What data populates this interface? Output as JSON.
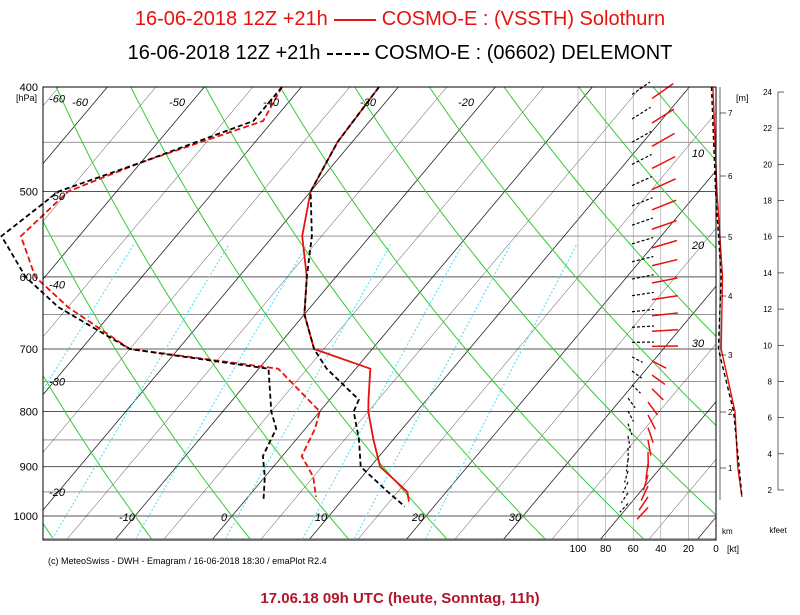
{
  "titles": {
    "line1": "16-06-2018  12Z +21h",
    "line1_model": "COSMO-E : (VSSTH)  Solothurn",
    "line2": "16-06-2018  12Z +21h",
    "line2_model": "COSMO-E : (06602)  DELEMONT"
  },
  "credit": "(c) MeteoSwiss - DWH - Emagram / 16-06-2018  18:30 / emaPlot R2.4",
  "footer": "17.06.18 09h UTC (heute, Sonntag, 11h)",
  "colors": {
    "solothurn": "#e8110e",
    "delemont": "#000000",
    "dry_adiabat": "#33cc33",
    "mixing_ratio": "#66e0f0",
    "isotherm": "#000000",
    "footer": "#b0152a"
  },
  "chart_data": {
    "type": "line",
    "subtype": "emagram",
    "y_axis": {
      "label": "[hPa]",
      "ticks": [
        "400",
        "500",
        "600",
        "700",
        "800",
        "900",
        "1000"
      ],
      "ylim": [
        1000,
        400
      ]
    },
    "x_axis": {
      "ticks": [
        "-10",
        "0",
        "10",
        "20",
        "30"
      ],
      "temperature_labels_left": [
        "-60",
        "-50",
        "-40",
        "-30",
        "-20"
      ],
      "temperature_labels_top": [
        "-60",
        "-50",
        "-40",
        "-30",
        "-20"
      ]
    },
    "right_axis_m": {
      "label": "[m]",
      "ticks": [
        "7",
        "6",
        "5",
        "4",
        "3",
        "2",
        "1"
      ]
    },
    "right_axis_kfeet": {
      "label": "kfeet",
      "ticks": [
        "24",
        "22",
        "20",
        "18",
        "16",
        "14",
        "12",
        "10",
        "8",
        "6",
        "4",
        "2"
      ]
    },
    "wind_axis": {
      "label": "[kt]",
      "ticks": [
        "100",
        "80",
        "60",
        "40",
        "20",
        "0"
      ],
      "km_label": "km"
    },
    "wind_speed_labels": [
      "10",
      "20",
      "30"
    ],
    "series": [
      {
        "name": "COSMO-E : (VSSTH)  Solothurn",
        "temperature": [
          [
            400,
            -22
          ],
          [
            450,
            -21.5
          ],
          [
            500,
            -20
          ],
          [
            550,
            -17
          ],
          [
            600,
            -13
          ],
          [
            650,
            -10
          ],
          [
            700,
            -6
          ],
          [
            730,
            1.5
          ],
          [
            780,
            4
          ],
          [
            800,
            5
          ],
          [
            850,
            8
          ],
          [
            900,
            11
          ],
          [
            950,
            16
          ],
          [
            970,
            17
          ]
        ],
        "dewpoint": [
          [
            400,
            -32
          ],
          [
            430,
            -31
          ],
          [
            470,
            -40
          ],
          [
            500,
            -45
          ],
          [
            550,
            -46
          ],
          [
            600,
            -41
          ],
          [
            640,
            -35
          ],
          [
            700,
            -25
          ],
          [
            730,
            -8
          ],
          [
            800,
            0
          ],
          [
            830,
            1
          ],
          [
            880,
            2
          ],
          [
            920,
            5
          ],
          [
            960,
            7
          ]
        ],
        "wind_speed": [
          [
            400,
            24
          ],
          [
            500,
            21
          ],
          [
            600,
            17
          ],
          [
            700,
            18
          ],
          [
            800,
            8
          ],
          [
            900,
            6
          ],
          [
            960,
            3
          ]
        ]
      },
      {
        "name": "COSMO-E : (06602)  DELEMONT",
        "temperature": [
          [
            400,
            -22
          ],
          [
            450,
            -21.5
          ],
          [
            500,
            -20
          ],
          [
            550,
            -16
          ],
          [
            600,
            -13
          ],
          [
            650,
            -10
          ],
          [
            700,
            -6
          ],
          [
            730,
            -3
          ],
          [
            780,
            3
          ],
          [
            800,
            3.5
          ],
          [
            850,
            6.5
          ],
          [
            900,
            9
          ],
          [
            950,
            14
          ],
          [
            980,
            17
          ]
        ],
        "dewpoint": [
          [
            400,
            -32
          ],
          [
            430,
            -32
          ],
          [
            470,
            -40
          ],
          [
            500,
            -46
          ],
          [
            550,
            -48
          ],
          [
            600,
            -42
          ],
          [
            640,
            -36
          ],
          [
            700,
            -25
          ],
          [
            730,
            -9
          ],
          [
            800,
            -5
          ],
          [
            830,
            -3
          ],
          [
            880,
            -2
          ],
          [
            920,
            0
          ],
          [
            970,
            2
          ]
        ],
        "wind_speed": [
          [
            400,
            25
          ],
          [
            500,
            22
          ],
          [
            600,
            18
          ],
          [
            700,
            20
          ],
          [
            800,
            9
          ],
          [
            900,
            5
          ],
          [
            960,
            3
          ]
        ]
      }
    ],
    "grid": true,
    "legend": "top"
  }
}
